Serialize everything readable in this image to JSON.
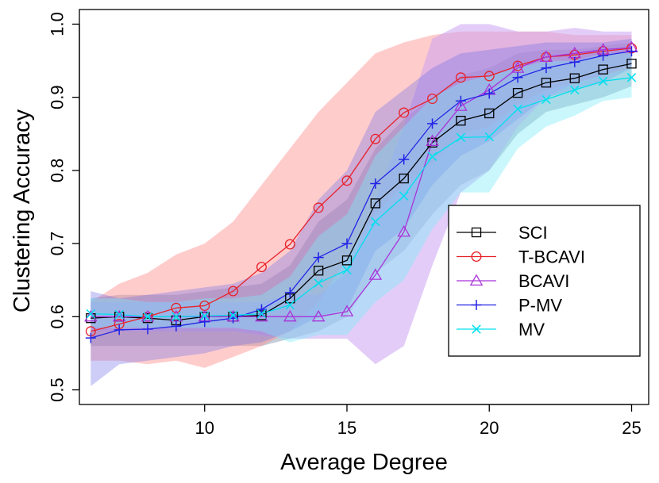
{
  "chart_data": {
    "type": "line",
    "title": "",
    "xlabel": "Average Degree",
    "ylabel": "Clustering Accuracy",
    "xlim": [
      5.6,
      25.6
    ],
    "ylim": [
      0.48,
      1.02
    ],
    "xticks": [
      10,
      15,
      20,
      25
    ],
    "yticks": [
      0.5,
      0.6,
      0.7,
      0.8,
      0.9,
      1.0
    ],
    "xtick_labels": [
      "10",
      "15",
      "20",
      "25"
    ],
    "ytick_labels": [
      "0.5",
      "0.6",
      "0.7",
      "0.8",
      "0.9",
      "1.0"
    ],
    "x": [
      6,
      7,
      8,
      9,
      10,
      11,
      12,
      13,
      14,
      15,
      16,
      17,
      18,
      19,
      20,
      21,
      22,
      23,
      24,
      25
    ],
    "legend_position": "right",
    "series": [
      {
        "name": "SCI",
        "color": "#000000",
        "fill": "#2f4f7f",
        "fill_opacity": 0.28,
        "marker": "square",
        "values": [
          0.598,
          0.6,
          0.598,
          0.595,
          0.6,
          0.6,
          0.602,
          0.625,
          0.663,
          0.677,
          0.755,
          0.789,
          0.838,
          0.868,
          0.878,
          0.906,
          0.92,
          0.926,
          0.938,
          0.946
        ],
        "lower": [
          0.56,
          0.56,
          0.56,
          0.56,
          0.56,
          0.56,
          0.56,
          0.57,
          0.58,
          0.6,
          0.66,
          0.69,
          0.74,
          0.78,
          0.8,
          0.85,
          0.88,
          0.89,
          0.9,
          0.915
        ],
        "upper": [
          0.625,
          0.63,
          0.63,
          0.63,
          0.635,
          0.64,
          0.645,
          0.67,
          0.73,
          0.76,
          0.83,
          0.87,
          0.9,
          0.93,
          0.94,
          0.96,
          0.965,
          0.965,
          0.97,
          0.975
        ]
      },
      {
        "name": "T-BCAVI",
        "color": "#e8222a",
        "fill": "#ff8f8f",
        "fill_opacity": 0.45,
        "marker": "circle",
        "values": [
          0.58,
          0.59,
          0.6,
          0.612,
          0.615,
          0.635,
          0.668,
          0.699,
          0.749,
          0.786,
          0.843,
          0.879,
          0.898,
          0.927,
          0.929,
          0.943,
          0.955,
          0.958,
          0.963,
          0.967
        ],
        "lower": [
          0.54,
          0.54,
          0.535,
          0.54,
          0.53,
          0.545,
          0.56,
          0.58,
          0.62,
          0.68,
          0.74,
          0.78,
          0.81,
          0.85,
          0.86,
          0.89,
          0.91,
          0.92,
          0.93,
          0.94
        ],
        "upper": [
          0.62,
          0.645,
          0.66,
          0.685,
          0.7,
          0.73,
          0.78,
          0.83,
          0.88,
          0.92,
          0.96,
          0.975,
          0.985,
          0.99,
          0.99,
          0.99,
          0.99,
          0.985,
          0.985,
          0.985
        ]
      },
      {
        "name": "BCAVI",
        "color": "#a933d9",
        "fill": "#c89bf2",
        "fill_opacity": 0.5,
        "marker": "triangle",
        "values": [
          0.6,
          0.6,
          0.6,
          0.6,
          0.6,
          0.6,
          0.6,
          0.6,
          0.6,
          0.607,
          0.657,
          0.716,
          0.84,
          0.888,
          0.91,
          0.94,
          0.955,
          0.96,
          0.965,
          0.968
        ],
        "lower": [
          0.58,
          0.58,
          0.58,
          0.58,
          0.58,
          0.58,
          0.575,
          0.57,
          0.57,
          0.57,
          0.535,
          0.56,
          0.67,
          0.77,
          0.8,
          0.86,
          0.9,
          0.92,
          0.93,
          0.945
        ],
        "upper": [
          0.62,
          0.62,
          0.62,
          0.62,
          0.62,
          0.62,
          0.62,
          0.63,
          0.63,
          0.66,
          0.76,
          0.86,
          0.98,
          1.0,
          1.0,
          0.99,
          0.99,
          0.995,
          0.99,
          0.99
        ]
      },
      {
        "name": "P-MV",
        "color": "#2323e6",
        "fill": "#6f6fe8",
        "fill_opacity": 0.35,
        "marker": "plus",
        "values": [
          0.571,
          0.582,
          0.583,
          0.587,
          0.593,
          0.598,
          0.61,
          0.633,
          0.681,
          0.7,
          0.782,
          0.815,
          0.864,
          0.895,
          0.905,
          0.927,
          0.94,
          0.948,
          0.957,
          0.963
        ],
        "lower": [
          0.505,
          0.535,
          0.54,
          0.545,
          0.55,
          0.56,
          0.565,
          0.58,
          0.6,
          0.61,
          0.69,
          0.72,
          0.78,
          0.82,
          0.84,
          0.87,
          0.9,
          0.91,
          0.92,
          0.94
        ],
        "upper": [
          0.635,
          0.625,
          0.63,
          0.635,
          0.64,
          0.645,
          0.66,
          0.69,
          0.76,
          0.8,
          0.88,
          0.91,
          0.94,
          0.96,
          0.965,
          0.97,
          0.975,
          0.975,
          0.975,
          0.98
        ]
      },
      {
        "name": "MV",
        "color": "#00e0ee",
        "fill": "#7aecf7",
        "fill_opacity": 0.4,
        "marker": "x",
        "values": [
          0.604,
          0.603,
          0.6,
          0.6,
          0.601,
          0.602,
          0.604,
          0.616,
          0.646,
          0.664,
          0.73,
          0.765,
          0.819,
          0.845,
          0.846,
          0.884,
          0.897,
          0.91,
          0.922,
          0.927
        ],
        "lower": [
          0.585,
          0.585,
          0.585,
          0.585,
          0.585,
          0.585,
          0.58,
          0.565,
          0.575,
          0.575,
          0.62,
          0.65,
          0.72,
          0.77,
          0.77,
          0.83,
          0.86,
          0.875,
          0.895,
          0.9
        ],
        "upper": [
          0.625,
          0.625,
          0.62,
          0.62,
          0.625,
          0.625,
          0.63,
          0.655,
          0.71,
          0.74,
          0.82,
          0.86,
          0.9,
          0.92,
          0.93,
          0.94,
          0.95,
          0.95,
          0.96,
          0.96
        ]
      }
    ]
  }
}
